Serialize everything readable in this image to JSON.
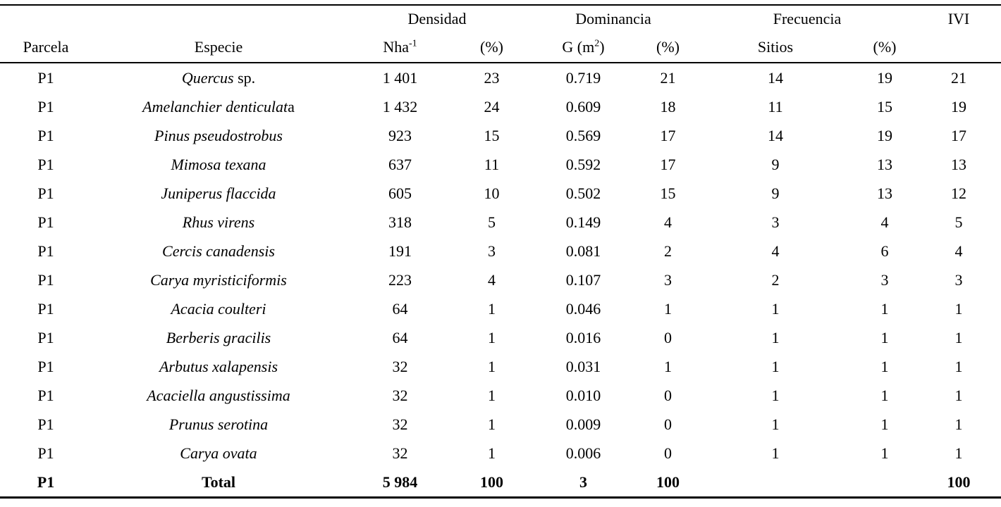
{
  "page": {
    "background": "#ffffff",
    "text_color": "#000000"
  },
  "table": {
    "header": {
      "groups": {
        "densidad": "Densidad",
        "dominancia": "Dominancia",
        "frecuencia": "Frecuencia",
        "ivi": "IVI"
      },
      "columns": {
        "parcela": "Parcela",
        "especie": "Especie",
        "nha_base": "Nha",
        "nha_sup": "-1",
        "densidad_pct": "(%)",
        "g_base": "G (m",
        "g_sup": "2",
        "g_after": ")",
        "dominancia_pct": "(%)",
        "sitios": "Sitios",
        "frecuencia_pct": "(%)"
      }
    },
    "rows": [
      {
        "parcela": "P1",
        "especie_italic": "Quercus",
        "especie_roman": " sp.",
        "nha": "1 401",
        "densidad_pct": "23",
        "g_m2": "0.719",
        "dominancia_pct": "21",
        "sitios": "14",
        "frecuencia_pct": "19",
        "ivi": "21",
        "bold": false
      },
      {
        "parcela": "P1",
        "especie_italic": "Amelanchier denticulat",
        "especie_roman": "a",
        "nha": "1 432",
        "densidad_pct": "24",
        "g_m2": "0.609",
        "dominancia_pct": "18",
        "sitios": "11",
        "frecuencia_pct": "15",
        "ivi": "19",
        "bold": false
      },
      {
        "parcela": "P1",
        "especie_italic": "Pinus pseudostrobus",
        "especie_roman": "",
        "nha": "923",
        "densidad_pct": "15",
        "g_m2": "0.569",
        "dominancia_pct": "17",
        "sitios": "14",
        "frecuencia_pct": "19",
        "ivi": "17",
        "bold": false
      },
      {
        "parcela": "P1",
        "especie_italic": "Mimosa texana",
        "especie_roman": "",
        "nha": "637",
        "densidad_pct": "11",
        "g_m2": "0.592",
        "dominancia_pct": "17",
        "sitios": "9",
        "frecuencia_pct": "13",
        "ivi": "13",
        "bold": false
      },
      {
        "parcela": "P1",
        "especie_italic": "Juniperus flaccida",
        "especie_roman": "",
        "nha": "605",
        "densidad_pct": "10",
        "g_m2": "0.502",
        "dominancia_pct": "15",
        "sitios": "9",
        "frecuencia_pct": "13",
        "ivi": "12",
        "bold": false
      },
      {
        "parcela": "P1",
        "especie_italic": "Rhus virens",
        "especie_roman": "",
        "nha": "318",
        "densidad_pct": "5",
        "g_m2": "0.149",
        "dominancia_pct": "4",
        "sitios": "3",
        "frecuencia_pct": "4",
        "ivi": "5",
        "bold": false
      },
      {
        "parcela": "P1",
        "especie_italic": "Cercis canadensis",
        "especie_roman": "",
        "nha": "191",
        "densidad_pct": "3",
        "g_m2": "0.081",
        "dominancia_pct": "2",
        "sitios": "4",
        "frecuencia_pct": "6",
        "ivi": "4",
        "bold": false
      },
      {
        "parcela": "P1",
        "especie_italic": "Carya myristiciformis",
        "especie_roman": "",
        "nha": "223",
        "densidad_pct": "4",
        "g_m2": "0.107",
        "dominancia_pct": "3",
        "sitios": "2",
        "frecuencia_pct": "3",
        "ivi": "3",
        "bold": false
      },
      {
        "parcela": "P1",
        "especie_italic": "Acacia coulteri",
        "especie_roman": "",
        "nha": "64",
        "densidad_pct": "1",
        "g_m2": "0.046",
        "dominancia_pct": "1",
        "sitios": "1",
        "frecuencia_pct": "1",
        "ivi": "1",
        "bold": false
      },
      {
        "parcela": "P1",
        "especie_italic": "Berberis gracilis",
        "especie_roman": "",
        "nha": "64",
        "densidad_pct": "1",
        "g_m2": "0.016",
        "dominancia_pct": "0",
        "sitios": "1",
        "frecuencia_pct": "1",
        "ivi": "1",
        "bold": false
      },
      {
        "parcela": "P1",
        "especie_italic": "Arbutus xalapensis",
        "especie_roman": "",
        "nha": "32",
        "densidad_pct": "1",
        "g_m2": "0.031",
        "dominancia_pct": "1",
        "sitios": "1",
        "frecuencia_pct": "1",
        "ivi": "1",
        "bold": false
      },
      {
        "parcela": "P1",
        "especie_italic": "Acaciella angustissima",
        "especie_roman": "",
        "nha": "32",
        "densidad_pct": "1",
        "g_m2": "0.010",
        "dominancia_pct": "0",
        "sitios": "1",
        "frecuencia_pct": "1",
        "ivi": "1",
        "bold": false
      },
      {
        "parcela": "P1",
        "especie_italic": "Prunus serotina",
        "especie_roman": "",
        "nha": "32",
        "densidad_pct": "1",
        "g_m2": "0.009",
        "dominancia_pct": "0",
        "sitios": "1",
        "frecuencia_pct": "1",
        "ivi": "1",
        "bold": false
      },
      {
        "parcela": "P1",
        "especie_italic": "Carya ovata",
        "especie_roman": "",
        "nha": "32",
        "densidad_pct": "1",
        "g_m2": "0.006",
        "dominancia_pct": "0",
        "sitios": "1",
        "frecuencia_pct": "1",
        "ivi": "1",
        "bold": false
      },
      {
        "parcela": "P1",
        "especie_italic": "",
        "especie_roman": "Total",
        "nha": "5 984",
        "densidad_pct": "100",
        "g_m2": "3",
        "dominancia_pct": "100",
        "sitios": "",
        "frecuencia_pct": "",
        "ivi": "100",
        "bold": true
      }
    ]
  }
}
